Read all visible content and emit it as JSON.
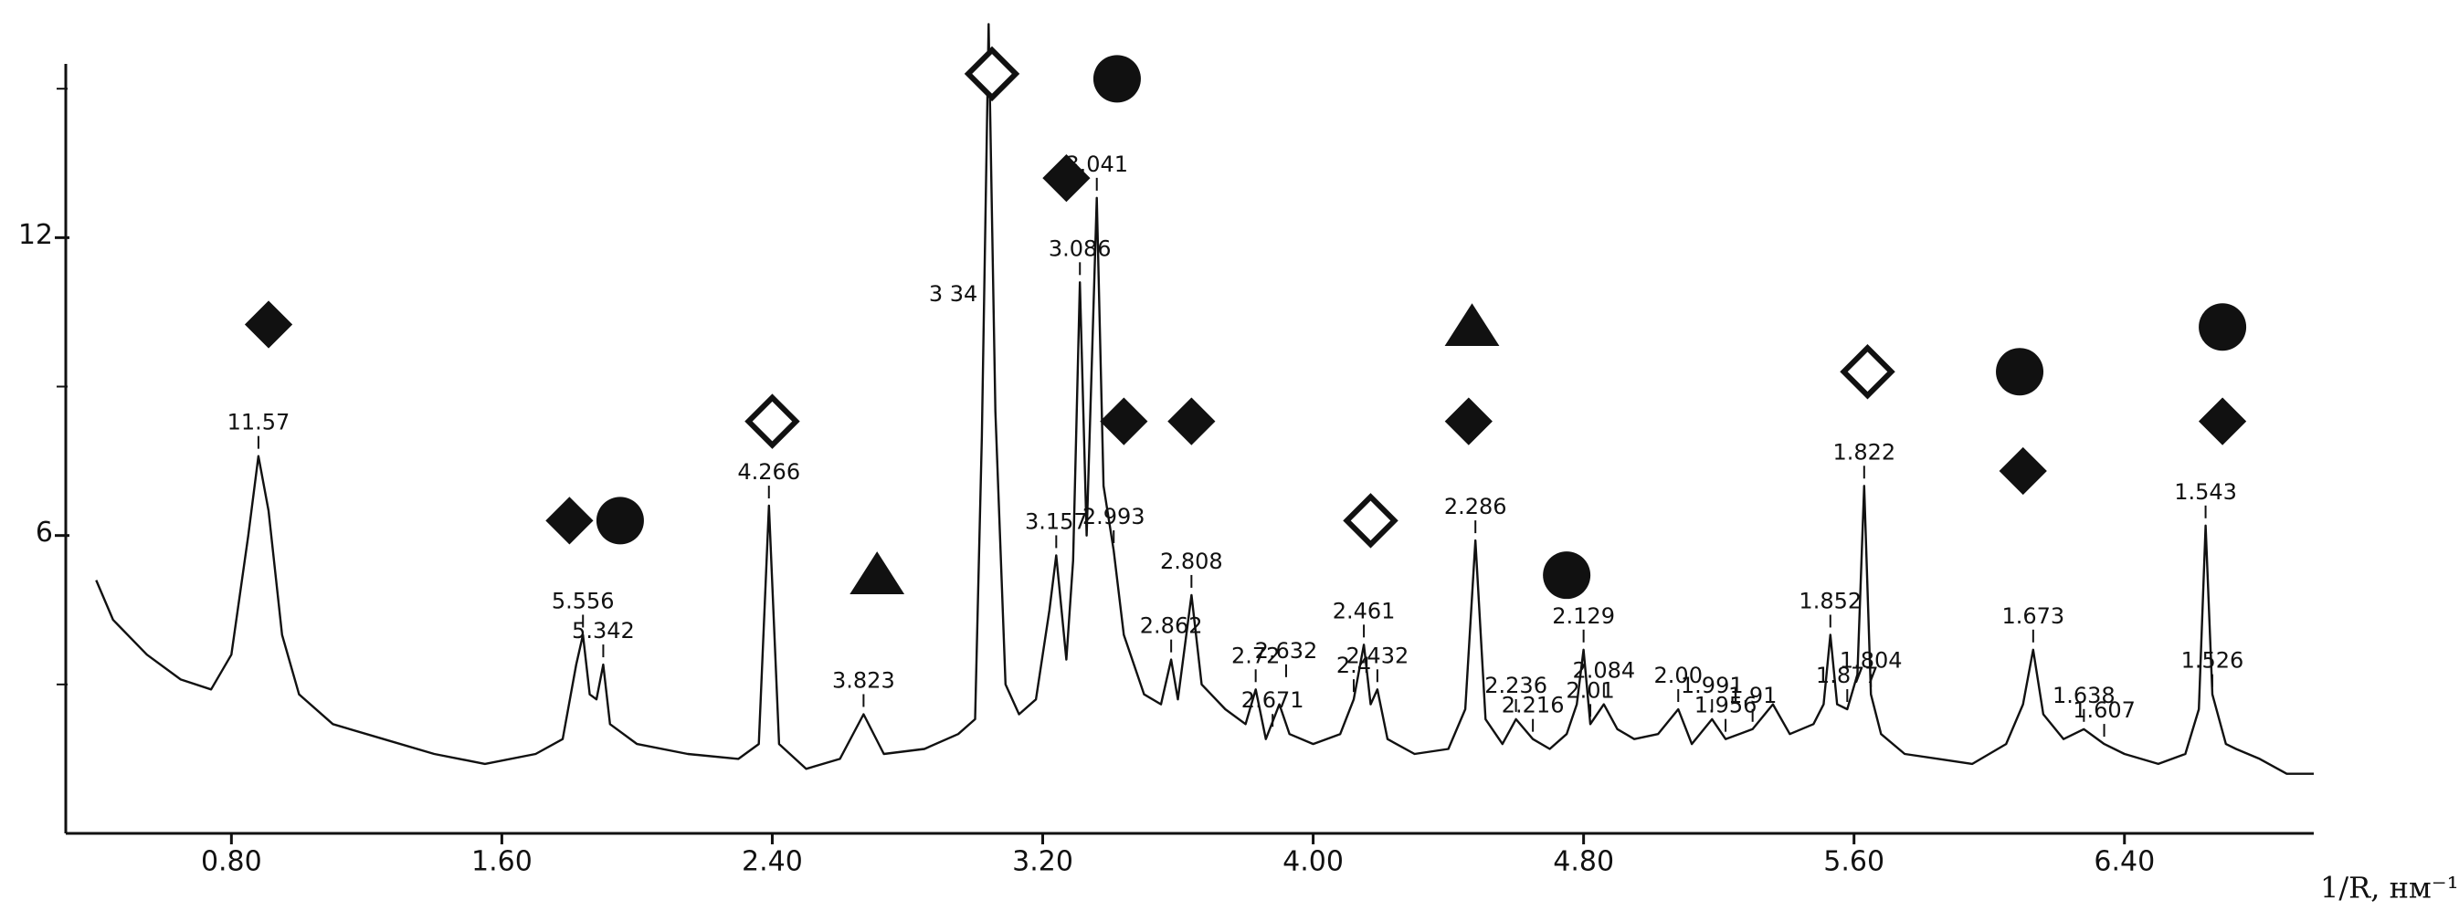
{
  "chart_data": {
    "type": "line",
    "x_label": "1/R, нм⁻¹",
    "xlim": [
      0.31,
      6.96
    ],
    "ylim": [
      0,
      15.5
    ],
    "xticks": [
      {
        "value": 0.8,
        "label": "0.80"
      },
      {
        "value": 1.6,
        "label": "1.60"
      },
      {
        "value": 2.4,
        "label": "2.40"
      },
      {
        "value": 3.2,
        "label": "3.20"
      },
      {
        "value": 4.0,
        "label": "4.00"
      },
      {
        "value": 4.8,
        "label": "4.80"
      },
      {
        "value": 5.6,
        "label": "5.60"
      },
      {
        "value": 6.4,
        "label": "6.40"
      }
    ],
    "yticks": [
      6,
      12
    ],
    "yminorticks": [
      3,
      9,
      15
    ],
    "x": [
      0.4,
      0.45,
      0.55,
      0.65,
      0.74,
      0.8,
      0.85,
      0.88,
      0.91,
      0.95,
      1.0,
      1.1,
      1.25,
      1.4,
      1.55,
      1.7,
      1.78,
      1.82,
      1.84,
      1.86,
      1.88,
      1.9,
      1.92,
      2.0,
      2.15,
      2.3,
      2.36,
      2.39,
      2.42,
      2.5,
      2.6,
      2.67,
      2.73,
      2.85,
      2.95,
      3.0,
      3.02,
      3.04,
      3.06,
      3.09,
      3.13,
      3.18,
      3.22,
      3.24,
      3.27,
      3.29,
      3.31,
      3.33,
      3.36,
      3.38,
      3.41,
      3.44,
      3.5,
      3.55,
      3.58,
      3.6,
      3.64,
      3.67,
      3.74,
      3.8,
      3.83,
      3.86,
      3.9,
      3.93,
      4.0,
      4.08,
      4.12,
      4.15,
      4.17,
      4.19,
      4.22,
      4.3,
      4.4,
      4.45,
      4.48,
      4.51,
      4.56,
      4.6,
      4.65,
      4.7,
      4.75,
      4.78,
      4.8,
      4.82,
      4.86,
      4.9,
      4.95,
      5.02,
      5.08,
      5.12,
      5.18,
      5.22,
      5.3,
      5.36,
      5.41,
      5.48,
      5.51,
      5.53,
      5.55,
      5.58,
      5.61,
      5.63,
      5.65,
      5.68,
      5.75,
      5.85,
      5.95,
      6.05,
      6.1,
      6.13,
      6.16,
      6.22,
      6.28,
      6.34,
      6.4,
      6.5,
      6.58,
      6.62,
      6.64,
      6.66,
      6.7,
      6.73,
      6.8,
      6.88,
      6.96
    ],
    "series": [
      {
        "color": "#111111",
        "values": [
          5.1,
          4.3,
          3.6,
          3.1,
          2.9,
          3.6,
          6.0,
          7.6,
          6.5,
          4.0,
          2.8,
          2.2,
          1.9,
          1.6,
          1.4,
          1.6,
          1.9,
          3.4,
          4.0,
          2.8,
          2.7,
          3.4,
          2.2,
          1.8,
          1.6,
          1.5,
          1.8,
          6.6,
          1.8,
          1.3,
          1.5,
          2.4,
          1.6,
          1.7,
          2.0,
          2.3,
          8.0,
          16.3,
          8.5,
          3.0,
          2.4,
          2.7,
          4.5,
          5.6,
          3.5,
          5.5,
          11.1,
          6.0,
          12.8,
          7.0,
          5.7,
          4.0,
          2.8,
          2.6,
          3.5,
          2.7,
          4.8,
          3.0,
          2.5,
          2.2,
          2.9,
          1.9,
          2.6,
          2.0,
          1.8,
          2.0,
          2.7,
          3.8,
          2.6,
          2.9,
          1.9,
          1.6,
          1.7,
          2.5,
          5.9,
          2.3,
          1.8,
          2.3,
          1.9,
          1.7,
          2.0,
          2.6,
          3.7,
          2.2,
          2.6,
          2.1,
          1.9,
          2.0,
          2.5,
          1.8,
          2.3,
          1.9,
          2.1,
          2.6,
          2.0,
          2.2,
          2.6,
          4.0,
          2.6,
          2.5,
          3.2,
          7.0,
          2.8,
          2.0,
          1.6,
          1.5,
          1.4,
          1.8,
          2.6,
          3.7,
          2.4,
          1.9,
          2.1,
          1.8,
          1.6,
          1.4,
          1.6,
          2.5,
          6.2,
          2.8,
          1.8,
          1.7,
          1.5,
          1.2,
          1.2
        ]
      }
    ],
    "peaks": [
      {
        "label": "11.57",
        "x": 0.88,
        "y": 7.6
      },
      {
        "label": "5.556",
        "x": 1.84,
        "y": 4.0
      },
      {
        "label": "5.342",
        "x": 1.9,
        "y": 3.4
      },
      {
        "label": "4.266",
        "x": 2.39,
        "y": 6.6
      },
      {
        "label": "3.823",
        "x": 2.67,
        "y": 2.4
      },
      {
        "label": "3 34",
        "x": 3.04,
        "y": 16.3
      },
      {
        "label": "3.157",
        "x": 3.24,
        "y": 5.6
      },
      {
        "label": "3.086",
        "x": 3.31,
        "y": 11.1
      },
      {
        "label": "3.041",
        "x": 3.36,
        "y": 12.8
      },
      {
        "label": "2.993",
        "x": 3.41,
        "y": 5.7
      },
      {
        "label": "2.862",
        "x": 3.58,
        "y": 3.5
      },
      {
        "label": "2.808",
        "x": 3.64,
        "y": 4.8
      },
      {
        "label": "2.72",
        "x": 3.83,
        "y": 2.9
      },
      {
        "label": "2.671",
        "x": 3.88,
        "y": 2.0
      },
      {
        "label": "2.632",
        "x": 3.92,
        "y": 3.0
      },
      {
        "label": "2.4",
        "x": 4.12,
        "y": 2.7
      },
      {
        "label": "2.461",
        "x": 4.15,
        "y": 3.8
      },
      {
        "label": "2.432",
        "x": 4.19,
        "y": 2.9
      },
      {
        "label": "2.286",
        "x": 4.48,
        "y": 5.9
      },
      {
        "label": "2.236",
        "x": 4.6,
        "y": 2.3
      },
      {
        "label": "2.216",
        "x": 4.65,
        "y": 1.9
      },
      {
        "label": "2.129",
        "x": 4.8,
        "y": 3.7
      },
      {
        "label": "2.01",
        "x": 4.82,
        "y": 2.2
      },
      {
        "label": "2.084",
        "x": 4.86,
        "y": 2.6
      },
      {
        "label": "2.00",
        "x": 5.08,
        "y": 2.5
      },
      {
        "label": "1.991",
        "x": 5.18,
        "y": 2.3
      },
      {
        "label": "1.956",
        "x": 5.22,
        "y": 1.9
      },
      {
        "label": "1.91",
        "x": 5.3,
        "y": 2.1
      },
      {
        "label": "1.852",
        "x": 5.53,
        "y": 4.0
      },
      {
        "label": "1.877",
        "x": 5.58,
        "y": 2.5
      },
      {
        "label": "1.822",
        "x": 5.63,
        "y": 7.0
      },
      {
        "label": "1.804",
        "x": 5.65,
        "y": 2.8
      },
      {
        "label": "1.673",
        "x": 6.13,
        "y": 3.7
      },
      {
        "label": "1.638",
        "x": 6.28,
        "y": 2.1
      },
      {
        "label": "1.607",
        "x": 6.34,
        "y": 1.8
      },
      {
        "label": "1.543",
        "x": 6.64,
        "y": 6.2
      },
      {
        "label": "1.526",
        "x": 6.66,
        "y": 2.8
      }
    ],
    "markers": [
      {
        "shape": "filled-diamond",
        "x": 0.91,
        "y": 10.25
      },
      {
        "shape": "filled-diamond",
        "x": 1.8,
        "y": 6.3
      },
      {
        "shape": "circle",
        "x": 1.95,
        "y": 6.3
      },
      {
        "shape": "open-diamond",
        "x": 2.4,
        "y": 8.3
      },
      {
        "shape": "triangle",
        "x": 2.71,
        "y": 5.2
      },
      {
        "shape": "open-diamond",
        "x": 3.05,
        "y": 15.3
      },
      {
        "shape": "circle",
        "x": 3.42,
        "y": 15.2
      },
      {
        "shape": "filled-diamond",
        "x": 3.27,
        "y": 13.2
      },
      {
        "shape": "filled-diamond",
        "x": 3.44,
        "y": 8.3
      },
      {
        "shape": "filled-diamond",
        "x": 3.64,
        "y": 8.3
      },
      {
        "shape": "open-diamond",
        "x": 4.17,
        "y": 6.3
      },
      {
        "shape": "triangle",
        "x": 4.47,
        "y": 10.2
      },
      {
        "shape": "filled-diamond",
        "x": 4.46,
        "y": 8.3
      },
      {
        "shape": "circle",
        "x": 4.75,
        "y": 5.2
      },
      {
        "shape": "open-diamond",
        "x": 5.64,
        "y": 9.3
      },
      {
        "shape": "circle",
        "x": 6.09,
        "y": 9.3
      },
      {
        "shape": "filled-diamond",
        "x": 6.1,
        "y": 7.3
      },
      {
        "shape": "circle",
        "x": 6.69,
        "y": 10.2
      },
      {
        "shape": "filled-diamond",
        "x": 6.69,
        "y": 8.3
      }
    ]
  }
}
